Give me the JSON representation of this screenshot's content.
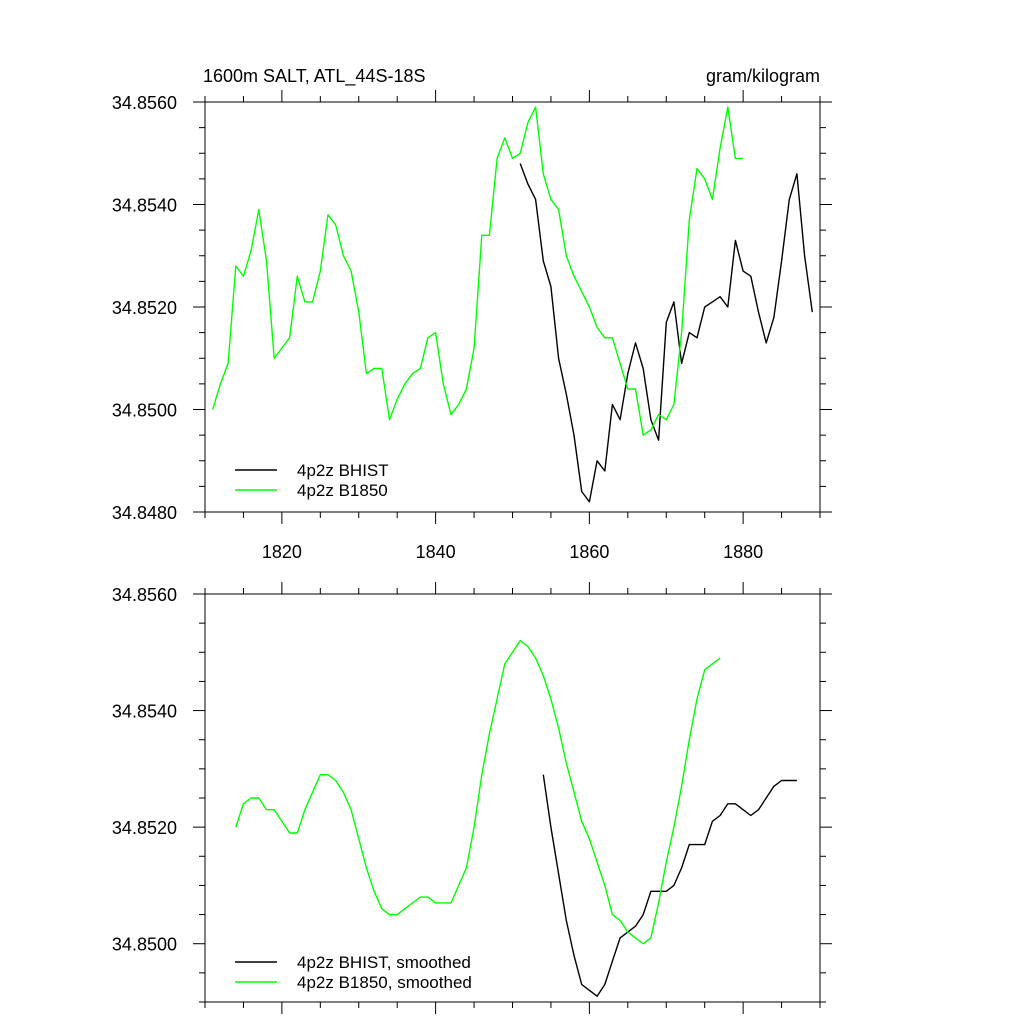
{
  "chart_data": [
    {
      "type": "line",
      "title": "1600m SALT, ATL_44S-18S",
      "units_label": "gram/kilogram",
      "xlim": [
        1810,
        1890
      ],
      "ylim": [
        34.848,
        34.856
      ],
      "x_ticks": [
        1820,
        1840,
        1860,
        1880
      ],
      "x_tick_labels": [
        "1820",
        "1840",
        "1860",
        "1880"
      ],
      "y_ticks": [
        34.848,
        34.85,
        34.852,
        34.854,
        34.856
      ],
      "y_tick_labels": [
        "34.8480",
        "34.8500",
        "34.8520",
        "34.8540",
        "34.8560"
      ],
      "legend_position": "bottom-left",
      "series": [
        {
          "name": "4p2z BHIST",
          "color": "#000000",
          "x": [
            1851,
            1852,
            1853,
            1854,
            1855,
            1856,
            1857,
            1858,
            1859,
            1860,
            1861,
            1862,
            1863,
            1864,
            1865,
            1866,
            1867,
            1868,
            1869,
            1870,
            1871,
            1872,
            1873,
            1874,
            1875,
            1876,
            1877,
            1878,
            1879,
            1880,
            1881,
            1882,
            1883,
            1884,
            1885,
            1886,
            1887,
            1888,
            1889
          ],
          "y": [
            34.8548,
            34.8544,
            34.8541,
            34.8529,
            34.8524,
            34.851,
            34.8503,
            34.8495,
            34.8484,
            34.8482,
            34.849,
            34.8488,
            34.8501,
            34.8498,
            34.8507,
            34.8513,
            34.8508,
            34.8498,
            34.8494,
            34.8517,
            34.8521,
            34.8509,
            34.8515,
            34.8514,
            34.852,
            34.8521,
            34.8522,
            34.852,
            34.8533,
            34.8527,
            34.8526,
            34.8519,
            34.8513,
            34.8518,
            34.8529,
            34.8541,
            34.8546,
            34.853,
            34.8519
          ]
        },
        {
          "name": "4p2z B1850",
          "color": "#00ff00",
          "x": [
            1811,
            1812,
            1813,
            1814,
            1815,
            1816,
            1817,
            1818,
            1819,
            1820,
            1821,
            1822,
            1823,
            1824,
            1825,
            1826,
            1827,
            1828,
            1829,
            1830,
            1831,
            1832,
            1833,
            1834,
            1835,
            1836,
            1837,
            1838,
            1839,
            1840,
            1841,
            1842,
            1843,
            1844,
            1845,
            1846,
            1847,
            1848,
            1849,
            1850,
            1851,
            1852,
            1853,
            1854,
            1855,
            1856,
            1857,
            1858,
            1859,
            1860,
            1861,
            1862,
            1863,
            1864,
            1865,
            1866,
            1867,
            1868,
            1869,
            1870,
            1871,
            1872,
            1873,
            1874,
            1875,
            1876,
            1877,
            1878,
            1879,
            1880
          ],
          "y": [
            34.85,
            34.8505,
            34.8509,
            34.8528,
            34.8526,
            34.8531,
            34.8539,
            34.8529,
            34.851,
            34.8512,
            34.8514,
            34.8526,
            34.8521,
            34.8521,
            34.8527,
            34.8538,
            34.8536,
            34.853,
            34.8527,
            34.8519,
            34.8507,
            34.8508,
            34.8508,
            34.8498,
            34.8502,
            34.8505,
            34.8507,
            34.8508,
            34.8514,
            34.8515,
            34.8505,
            34.8499,
            34.8501,
            34.8504,
            34.8512,
            34.8534,
            34.8534,
            34.8549,
            34.8553,
            34.8549,
            34.855,
            34.8556,
            34.8559,
            34.8546,
            34.8541,
            34.8539,
            34.853,
            34.8526,
            34.8523,
            34.852,
            34.8516,
            34.8514,
            34.8514,
            34.8509,
            34.8504,
            34.8504,
            34.8495,
            34.8496,
            34.8499,
            34.8498,
            34.8501,
            34.8515,
            34.8537,
            34.8547,
            34.8545,
            34.8541,
            34.8551,
            34.8559,
            34.8549,
            34.8549
          ]
        }
      ]
    },
    {
      "type": "line",
      "xlim": [
        1810,
        1890
      ],
      "ylim": [
        34.849,
        34.856
      ],
      "x_ticks": [
        1820,
        1840,
        1860,
        1880
      ],
      "y_ticks": [
        34.85,
        34.852,
        34.854,
        34.856
      ],
      "y_tick_labels": [
        "34.8500",
        "34.8520",
        "34.8540",
        "34.8560"
      ],
      "legend_position": "bottom-left",
      "series": [
        {
          "name": "4p2z BHIST, smoothed",
          "color": "#000000",
          "x": [
            1854,
            1855,
            1856,
            1857,
            1858,
            1859,
            1860,
            1861,
            1862,
            1863,
            1864,
            1865,
            1866,
            1867,
            1868,
            1869,
            1870,
            1871,
            1872,
            1873,
            1874,
            1875,
            1876,
            1877,
            1878,
            1879,
            1880,
            1881,
            1882,
            1883,
            1884,
            1885,
            1886,
            1887
          ],
          "y": [
            34.8529,
            34.852,
            34.8512,
            34.8504,
            34.8498,
            34.8493,
            34.8492,
            34.8491,
            34.8493,
            34.8497,
            34.8501,
            34.8502,
            34.8503,
            34.8505,
            34.8509,
            34.8509,
            34.8509,
            34.851,
            34.8513,
            34.8517,
            34.8517,
            34.8517,
            34.8521,
            34.8522,
            34.8524,
            34.8524,
            34.8523,
            34.8522,
            34.8523,
            34.8525,
            34.8527,
            34.8528,
            34.8528,
            34.8528
          ]
        },
        {
          "name": "4p2z B1850, smoothed",
          "color": "#00ff00",
          "x": [
            1814,
            1815,
            1816,
            1817,
            1818,
            1819,
            1820,
            1821,
            1822,
            1823,
            1824,
            1825,
            1826,
            1827,
            1828,
            1829,
            1830,
            1831,
            1832,
            1833,
            1834,
            1835,
            1836,
            1837,
            1838,
            1839,
            1840,
            1841,
            1842,
            1843,
            1844,
            1845,
            1846,
            1847,
            1848,
            1849,
            1850,
            1851,
            1852,
            1853,
            1854,
            1855,
            1856,
            1857,
            1858,
            1859,
            1860,
            1861,
            1862,
            1863,
            1864,
            1865,
            1866,
            1867,
            1868,
            1869,
            1870,
            1871,
            1872,
            1873,
            1874,
            1875,
            1876,
            1877
          ],
          "y": [
            34.852,
            34.8524,
            34.8525,
            34.8525,
            34.8523,
            34.8523,
            34.8521,
            34.8519,
            34.8519,
            34.8523,
            34.8526,
            34.8529,
            34.8529,
            34.8528,
            34.8526,
            34.8523,
            34.8518,
            34.8513,
            34.8509,
            34.8506,
            34.8505,
            34.8505,
            34.8506,
            34.8507,
            34.8508,
            34.8508,
            34.8507,
            34.8507,
            34.8507,
            34.851,
            34.8513,
            34.852,
            34.8529,
            34.8536,
            34.8542,
            34.8548,
            34.855,
            34.8552,
            34.8551,
            34.8549,
            34.8546,
            34.8542,
            34.8537,
            34.8531,
            34.8526,
            34.8521,
            34.8518,
            34.8514,
            34.851,
            34.8505,
            34.8504,
            34.8502,
            34.8501,
            34.85,
            34.8501,
            34.8507,
            34.8514,
            34.852,
            34.8527,
            34.8535,
            34.8542,
            34.8547,
            34.8548,
            34.8549
          ]
        }
      ]
    }
  ]
}
